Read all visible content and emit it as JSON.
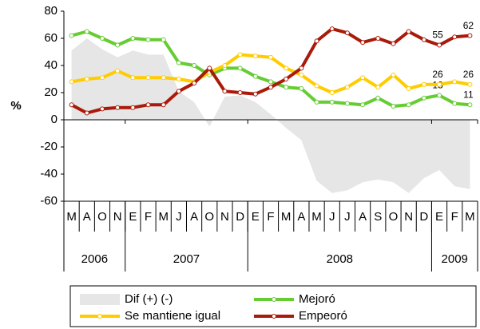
{
  "chart_data": {
    "type": "line",
    "y_label": "%",
    "categories": [
      "M",
      "A",
      "O",
      "N",
      "E",
      "F",
      "M",
      "J",
      "A",
      "O",
      "N",
      "D",
      "E",
      "F",
      "M",
      "A",
      "M",
      "J",
      "J",
      "A",
      "S",
      "O",
      "N",
      "D",
      "E",
      "F",
      "M"
    ],
    "year_groups": [
      {
        "label": "2006",
        "months": 4
      },
      {
        "label": "2007",
        "months": 8
      },
      {
        "label": "2008",
        "months": 12
      },
      {
        "label": "2009",
        "months": 3
      }
    ],
    "ylim": [
      -60,
      80
    ],
    "yticks": [
      -60,
      -40,
      -20,
      0,
      20,
      40,
      60,
      80
    ],
    "area": {
      "name": "Dif (+) (-)",
      "color": "#e6e6e6",
      "values": [
        51,
        60,
        52,
        46,
        51,
        48,
        48,
        21,
        13,
        -5,
        17,
        18,
        13,
        4,
        -6,
        -15,
        -45,
        -54,
        -52,
        -46,
        -44,
        -46,
        -54,
        -43,
        -37,
        -49,
        -51
      ]
    },
    "series": [
      {
        "name": "Mejoró",
        "color": "#66cc33",
        "values": [
          62,
          65,
          60,
          55,
          60,
          59,
          59,
          42,
          40,
          33,
          38,
          38,
          32,
          28,
          24,
          23,
          13,
          13,
          12,
          11,
          16,
          10,
          11,
          16,
          18,
          12,
          11
        ],
        "value_labels": [
          null,
          null,
          null,
          null,
          null,
          null,
          null,
          null,
          null,
          null,
          null,
          null,
          null,
          null,
          null,
          null,
          null,
          null,
          null,
          null,
          null,
          null,
          null,
          null,
          "18",
          null,
          "11"
        ]
      },
      {
        "name": "Se mantiene igual",
        "color": "#ffcc00",
        "values": [
          28,
          30,
          31,
          36,
          31,
          31,
          31,
          30,
          28,
          35,
          40,
          48,
          47,
          46,
          38,
          33,
          25,
          20,
          24,
          31,
          24,
          33,
          23,
          26,
          26,
          28,
          26
        ],
        "value_labels": [
          null,
          null,
          null,
          null,
          null,
          null,
          null,
          null,
          null,
          null,
          null,
          null,
          null,
          null,
          null,
          null,
          null,
          null,
          null,
          null,
          null,
          null,
          null,
          null,
          "26",
          null,
          "26"
        ]
      },
      {
        "name": "Empeoró",
        "color": "#aa1a0a",
        "values": [
          11,
          5,
          8,
          9,
          9,
          11,
          11,
          21,
          27,
          38,
          21,
          20,
          19,
          24,
          30,
          38,
          58,
          67,
          64,
          57,
          60,
          56,
          65,
          59,
          55,
          61,
          62
        ],
        "value_labels": [
          null,
          null,
          null,
          null,
          null,
          null,
          null,
          null,
          null,
          null,
          null,
          null,
          null,
          null,
          null,
          null,
          null,
          null,
          null,
          null,
          null,
          null,
          null,
          null,
          "55",
          null,
          "62"
        ]
      }
    ]
  }
}
